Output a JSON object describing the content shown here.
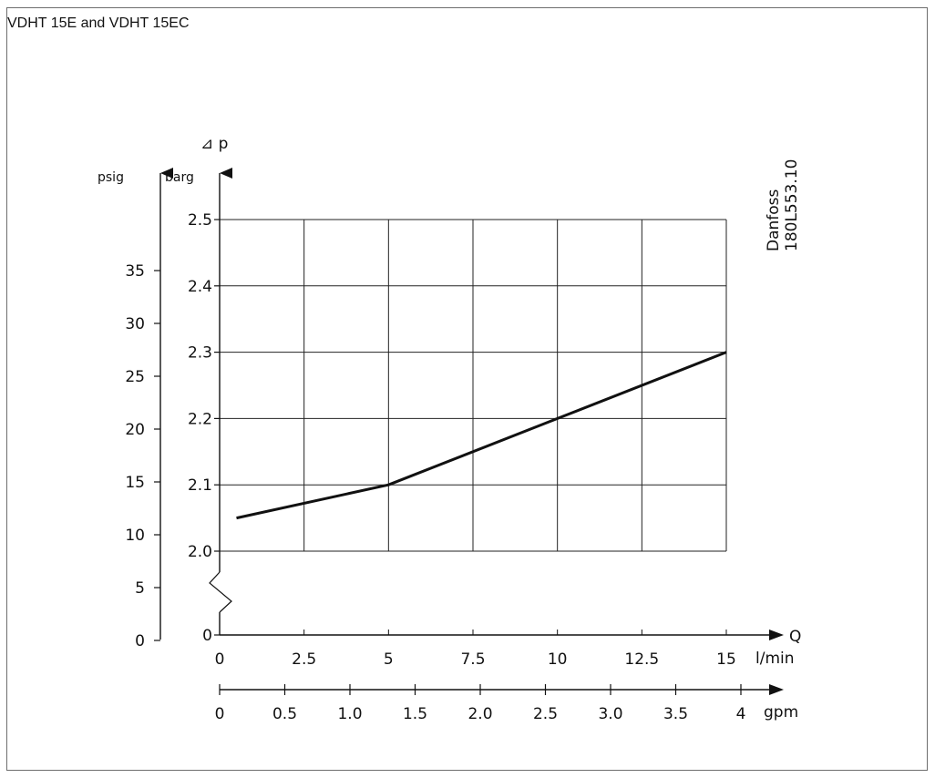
{
  "chart_data": {
    "type": "line",
    "title": "VDHT 15E and VDHT 15EC",
    "y_symbol": "⊿ p",
    "y_unit_primary": "barg",
    "y_unit_secondary": "psig",
    "x_symbol": "Q",
    "x_unit_primary": "l/min",
    "x_unit_secondary": "gpm",
    "ylim": [
      2.0,
      2.5
    ],
    "xlim": [
      0,
      15
    ],
    "grid": true,
    "barg_ticks": [
      "2.0",
      "2.1",
      "2.2",
      "2.3",
      "2.4",
      "2.5"
    ],
    "barg_zero": "0",
    "psig_ticks": [
      {
        "label": "0",
        "psi": 0
      },
      {
        "label": "5",
        "psi": 5
      },
      {
        "label": "10",
        "psi": 10
      },
      {
        "label": "15",
        "psi": 15
      },
      {
        "label": "20",
        "psi": 20
      },
      {
        "label": "25",
        "psi": 25
      },
      {
        "label": "30",
        "psi": 30
      },
      {
        "label": "35",
        "psi": 35
      }
    ],
    "lmin_ticks": [
      "0",
      "2.5",
      "5",
      "7.5",
      "10",
      "12.5",
      "15"
    ],
    "gpm_ticks": [
      "0",
      "0.5",
      "1.0",
      "1.5",
      "2.0",
      "2.5",
      "3.0",
      "3.5",
      "4"
    ],
    "series": [
      {
        "x": [
          0.5,
          5,
          10,
          15
        ],
        "y": [
          2.05,
          2.1,
          2.2,
          2.3
        ]
      }
    ],
    "side_note_line1": "Danfoss",
    "side_note_line2": "180L553.10"
  }
}
